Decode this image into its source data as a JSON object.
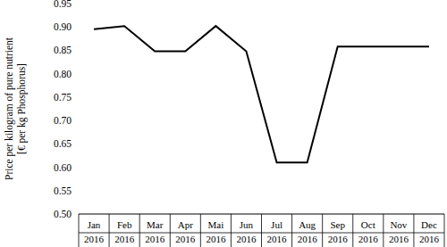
{
  "chart_data": {
    "type": "line",
    "y_label": [
      "Price per kilogram of pure nutrient",
      "[€ per kg Phosphorus]"
    ],
    "categories": [
      "Jan 2016",
      "Feb 2016",
      "Mar 2016",
      "Apr 2016",
      "Mai 2016",
      "Jun 2016",
      "Jul 2016",
      "Aug 2016",
      "Sep 2016",
      "Oct 2016",
      "Nov 2016",
      "Dec 2016"
    ],
    "values": [
      0.895,
      0.902,
      0.848,
      0.848,
      0.902,
      0.848,
      0.61,
      0.61,
      0.858,
      0.858,
      0.858,
      0.858
    ],
    "color": "#000000",
    "ylim": [
      0.5,
      0.95
    ],
    "yticks": [
      {
        "value": 0.5,
        "label": "0.50"
      },
      {
        "value": 0.55,
        "label": "0.55"
      },
      {
        "value": 0.6,
        "label": "0.60"
      },
      {
        "value": 0.65,
        "label": "0.65"
      },
      {
        "value": 0.7,
        "label": "0.70"
      },
      {
        "value": 0.75,
        "label": "0.75"
      },
      {
        "value": 0.8,
        "label": "0.80"
      },
      {
        "value": 0.85,
        "label": "0.85"
      },
      {
        "value": 0.9,
        "label": "0.90"
      },
      {
        "value": 0.95,
        "label": "0.95"
      }
    ],
    "grid": false
  }
}
